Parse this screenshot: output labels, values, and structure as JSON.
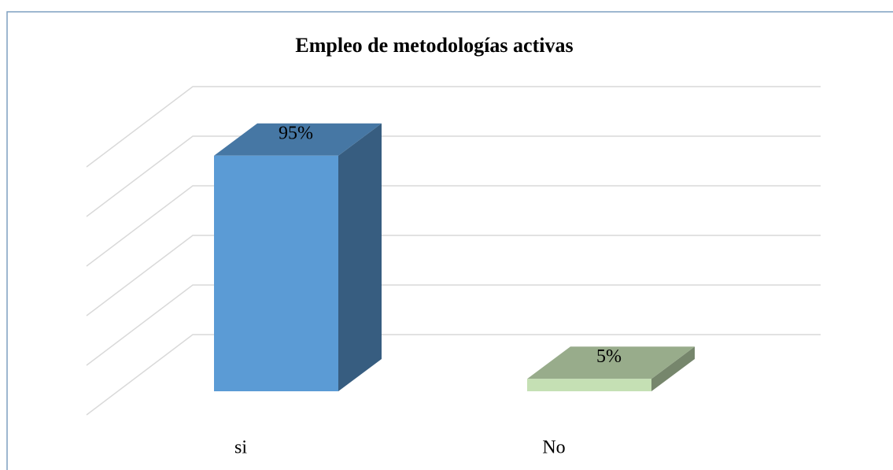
{
  "chart_data": {
    "type": "bar3d",
    "title": "Empleo de metodologías activas",
    "categories": [
      "si",
      "No"
    ],
    "values": [
      95,
      5
    ],
    "value_labels": [
      "95%",
      "5%"
    ],
    "colors": [
      "#5b9bd5",
      "#c5e0b4"
    ],
    "ylim": [
      0,
      100
    ],
    "yticks": [
      0,
      20,
      40,
      60,
      80,
      100
    ],
    "grid": true
  }
}
